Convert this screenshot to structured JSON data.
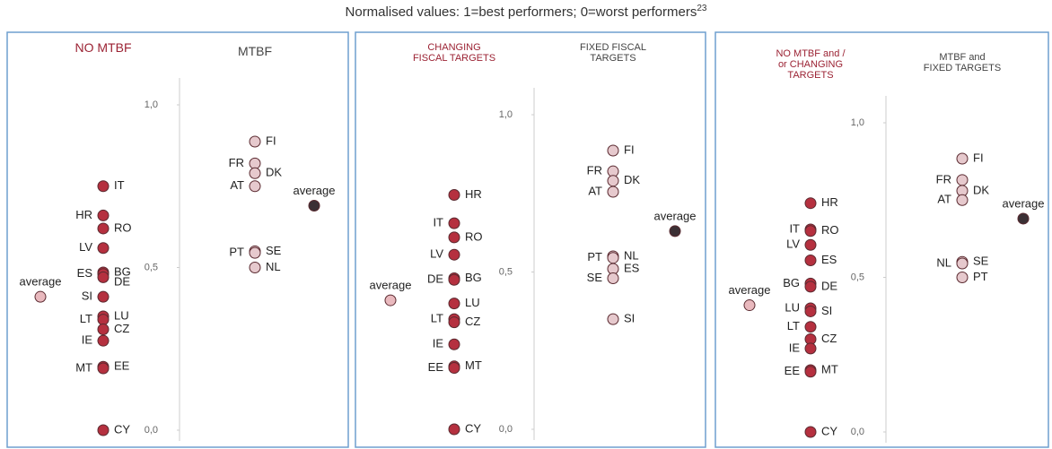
{
  "title": "Normalised values: 1=best performers; 0=worst performers",
  "title_note": "23",
  "chart_data": [
    {
      "type": "dotplot",
      "ylim": [
        0,
        1
      ],
      "yticks": [
        {
          "value": 0,
          "label": "0,0"
        },
        {
          "value": 0.5,
          "label": "0,5"
        },
        {
          "value": 1,
          "label": "1,0"
        }
      ],
      "series": [
        {
          "name": "NO MTBF",
          "color": "#b5303f",
          "labels": [
            "IT",
            "HR",
            "RO",
            "LV",
            "BG",
            "ES",
            "DE",
            "SI",
            "LU",
            "LT",
            "CZ",
            "IE",
            "EE",
            "MT",
            "CY"
          ],
          "values": [
            0.75,
            0.66,
            0.62,
            0.56,
            0.485,
            0.48,
            0.47,
            0.41,
            0.35,
            0.34,
            0.31,
            0.275,
            0.195,
            0.19,
            0.0
          ],
          "average_name": "average",
          "average_value": 0.41,
          "average_color": "#e9b9be"
        },
        {
          "name": "MTBF",
          "color": "#e6c9cd",
          "labels": [
            "FI",
            "FR",
            "DK",
            "AT",
            "SE",
            "PT",
            "NL"
          ],
          "values": [
            0.887,
            0.82,
            0.79,
            0.75,
            0.55,
            0.545,
            0.5
          ],
          "average_name": "average",
          "average_value": 0.69,
          "average_color": "#3b3035"
        }
      ]
    },
    {
      "type": "dotplot",
      "ylim": [
        0,
        1
      ],
      "yticks": [
        {
          "value": 0,
          "label": "0,0"
        },
        {
          "value": 0.5,
          "label": "0,5"
        },
        {
          "value": 1,
          "label": "1,0"
        }
      ],
      "series": [
        {
          "name": "CHANGING\nFISCAL TARGETS",
          "color": "#b5303f",
          "labels": [
            "HR",
            "IT",
            "RO",
            "LV",
            "BG",
            "DE",
            "LU",
            "LT",
            "CZ",
            "IE",
            "MT",
            "EE",
            "CY"
          ],
          "values": [
            0.745,
            0.655,
            0.61,
            0.555,
            0.48,
            0.475,
            0.4,
            0.35,
            0.34,
            0.27,
            0.2,
            0.195,
            0.0
          ],
          "average_name": "average",
          "average_value": 0.41,
          "average_color": "#e9b9be"
        },
        {
          "name": "FIXED FISCAL\nTARGETS",
          "color": "#e6c9cd",
          "labels": [
            "FI",
            "FR",
            "DK",
            "AT",
            "NL",
            "PT",
            "ES",
            "SE",
            "SI"
          ],
          "values": [
            0.886,
            0.82,
            0.79,
            0.755,
            0.55,
            0.545,
            0.51,
            0.48,
            0.35
          ],
          "average_name": "average",
          "average_value": 0.63,
          "average_color": "#3b3035"
        }
      ]
    },
    {
      "type": "dotplot",
      "ylim": [
        0,
        1
      ],
      "yticks": [
        {
          "value": 0,
          "label": "0,0"
        },
        {
          "value": 0.5,
          "label": "0,5"
        },
        {
          "value": 1,
          "label": "1,0"
        }
      ],
      "series": [
        {
          "name": "NO MTBF and /\nor CHANGING\nTARGETS",
          "color": "#b5303f",
          "labels": [
            "HR",
            "IT",
            "RO",
            "LV",
            "ES",
            "BG",
            "DE",
            "LU",
            "SI",
            "LT",
            "CZ",
            "IE",
            "MT",
            "EE",
            "CY"
          ],
          "values": [
            0.74,
            0.655,
            0.65,
            0.605,
            0.555,
            0.48,
            0.47,
            0.4,
            0.39,
            0.34,
            0.3,
            0.27,
            0.2,
            0.195,
            0.0
          ],
          "average_name": "average",
          "average_value": 0.41,
          "average_color": "#e9b9be"
        },
        {
          "name": "MTBF and\nFIXED TARGETS",
          "color": "#e6c9cd",
          "labels": [
            "FI",
            "FR",
            "DK",
            "AT",
            "SE",
            "NL",
            "PT"
          ],
          "values": [
            0.884,
            0.815,
            0.78,
            0.75,
            0.55,
            0.545,
            0.5
          ],
          "average_name": "average",
          "average_value": 0.69,
          "average_color": "#3b3035"
        }
      ]
    }
  ]
}
